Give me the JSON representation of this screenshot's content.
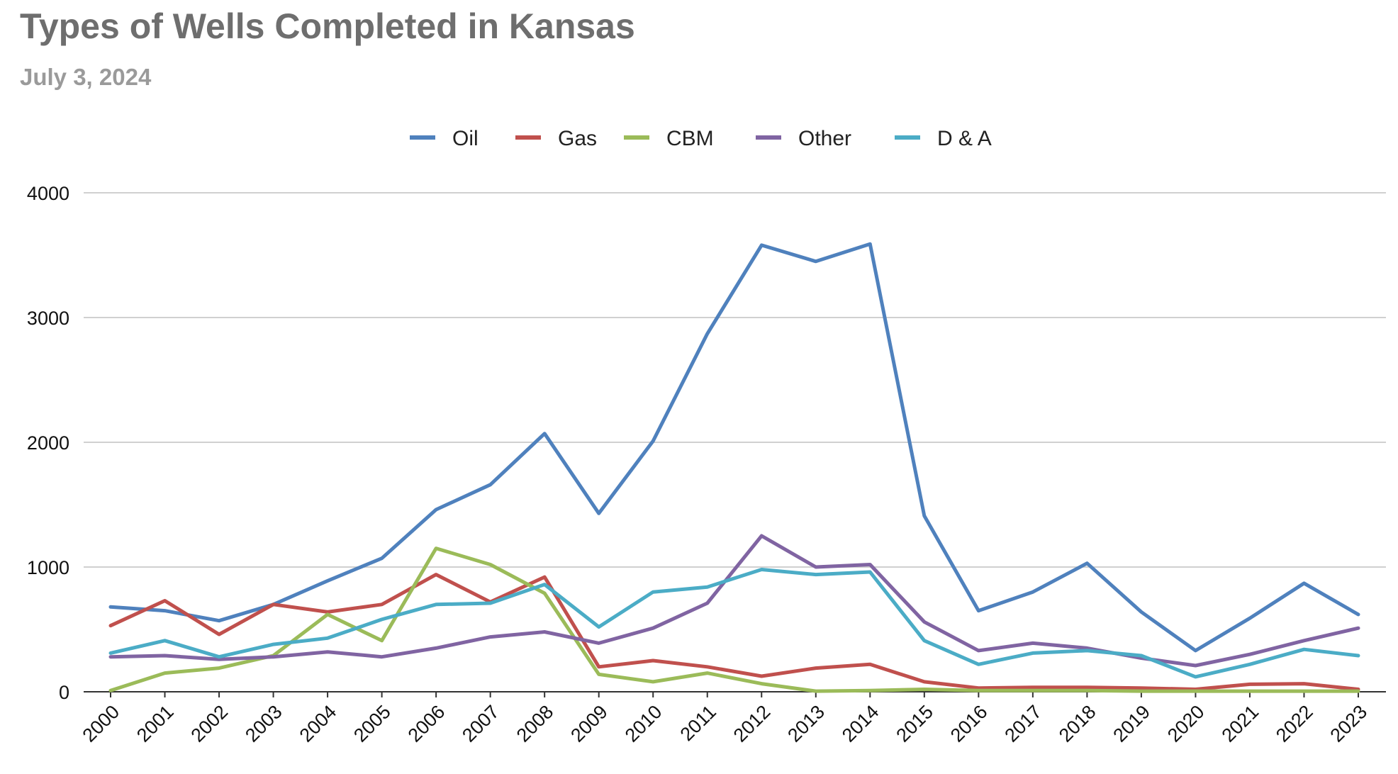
{
  "title": "Types of Wells Completed in Kansas",
  "subtitle": "July 3, 2024",
  "chart_data": {
    "type": "line",
    "title": "Types of Wells Completed in Kansas",
    "subtitle": "July 3, 2024",
    "xlabel": "",
    "ylabel": "",
    "x": [
      "2000",
      "2001",
      "2002",
      "2003",
      "2004",
      "2005",
      "2006",
      "2007",
      "2008",
      "2009",
      "2010",
      "2011",
      "2012",
      "2013",
      "2014",
      "2015",
      "2016",
      "2017",
      "2018",
      "2019",
      "2020",
      "2021",
      "2022",
      "2023"
    ],
    "ylim": [
      0,
      4000
    ],
    "yticks": [
      0,
      1000,
      2000,
      3000,
      4000
    ],
    "grid": true,
    "legend": "top-center",
    "series": [
      {
        "name": "Oil",
        "color": "#4f81bd",
        "values": [
          680,
          650,
          570,
          700,
          890,
          1070,
          1460,
          1660,
          2070,
          1430,
          2010,
          2870,
          3580,
          3450,
          3590,
          1410,
          650,
          800,
          1030,
          640,
          330,
          590,
          870,
          620
        ]
      },
      {
        "name": "Gas",
        "color": "#c0504d",
        "values": [
          530,
          730,
          460,
          700,
          640,
          700,
          940,
          720,
          920,
          200,
          250,
          200,
          125,
          190,
          220,
          80,
          30,
          35,
          35,
          30,
          20,
          60,
          65,
          20
        ]
      },
      {
        "name": "CBM",
        "color": "#9bbb59",
        "values": [
          10,
          150,
          190,
          290,
          620,
          410,
          1150,
          1020,
          790,
          140,
          80,
          150,
          65,
          5,
          10,
          20,
          10,
          10,
          10,
          5,
          5,
          5,
          5,
          5
        ]
      },
      {
        "name": "Other",
        "color": "#8064a2",
        "values": [
          280,
          290,
          260,
          280,
          320,
          280,
          350,
          440,
          480,
          390,
          510,
          710,
          1250,
          1000,
          1020,
          560,
          330,
          390,
          350,
          270,
          210,
          300,
          410,
          510
        ]
      },
      {
        "name": "D & A",
        "color": "#4bacc6",
        "values": [
          310,
          410,
          280,
          380,
          430,
          580,
          700,
          710,
          860,
          520,
          800,
          840,
          980,
          940,
          960,
          410,
          220,
          310,
          330,
          290,
          120,
          220,
          340,
          290
        ]
      }
    ]
  }
}
